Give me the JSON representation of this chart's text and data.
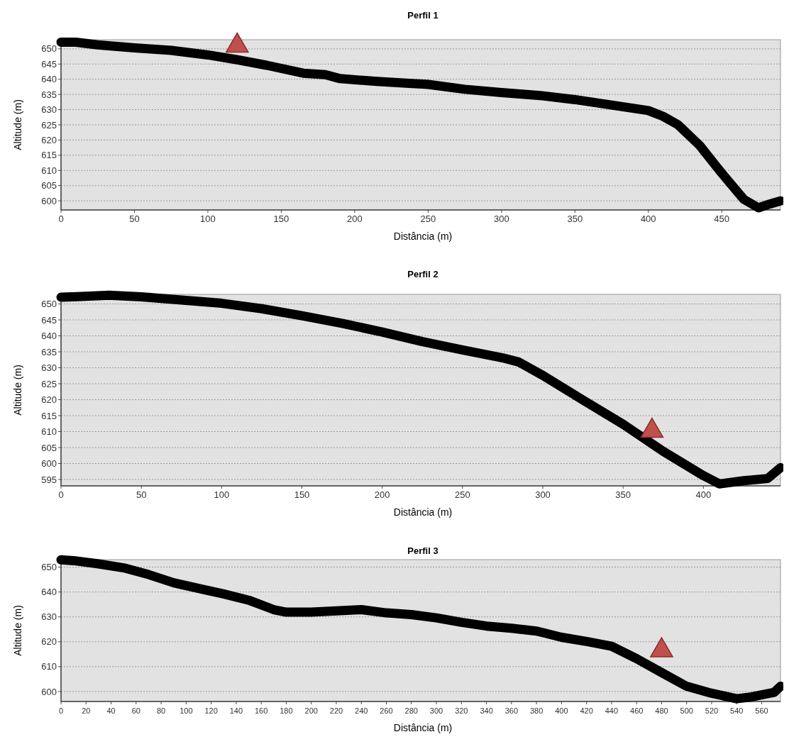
{
  "chart_data": [
    {
      "type": "line",
      "title": "Perfil 1",
      "xlabel": "Distância (m)",
      "ylabel": "Altitude (m)",
      "xlim": [
        0,
        490
      ],
      "xticks": [
        0,
        50,
        100,
        150,
        200,
        250,
        300,
        350,
        400,
        450
      ],
      "ylim": [
        597,
        653
      ],
      "yticks": [
        600,
        605,
        610,
        615,
        620,
        625,
        630,
        635,
        640,
        645,
        650
      ],
      "grid": "y",
      "series": [
        {
          "color": "#000000",
          "x": [
            0,
            10,
            25,
            50,
            75,
            100,
            120,
            140,
            165,
            180,
            190,
            215,
            235,
            250,
            275,
            300,
            325,
            350,
            375,
            400,
            410,
            420,
            435,
            450,
            465,
            475,
            483,
            490
          ],
          "values": [
            652.2,
            652.2,
            651.3,
            650.3,
            649.5,
            648,
            646.4,
            644.6,
            642,
            641.5,
            640.2,
            639.3,
            638.7,
            638.3,
            636.7,
            635.6,
            634.7,
            633.3,
            631.5,
            629.7,
            627.8,
            625.1,
            618.2,
            609.1,
            600.5,
            597.7,
            599,
            600
          ]
        },
        {
          "type": "scatter",
          "color": "#c0504d",
          "marker": "triangle",
          "x": [
            120
          ],
          "values": [
            651
          ]
        }
      ]
    },
    {
      "type": "line",
      "title": "Perfil 2",
      "xlabel": "Distância (m)",
      "ylabel": "Altitude (m)",
      "xlim": [
        0,
        448
      ],
      "xticks": [
        0,
        50,
        100,
        150,
        200,
        250,
        300,
        350,
        400
      ],
      "ylim": [
        593,
        653
      ],
      "yticks": [
        595,
        600,
        605,
        610,
        615,
        620,
        625,
        630,
        635,
        640,
        645,
        650
      ],
      "grid": "y",
      "series": [
        {
          "color": "#000000",
          "x": [
            0,
            10,
            30,
            50,
            75,
            100,
            125,
            150,
            175,
            200,
            225,
            250,
            275,
            285,
            300,
            325,
            350,
            375,
            400,
            410,
            425,
            440,
            448
          ],
          "values": [
            652.1,
            652.3,
            652.7,
            652.2,
            651.2,
            650.2,
            648.5,
            646.3,
            643.9,
            641.2,
            638.2,
            635.6,
            633.1,
            631.8,
            627.6,
            619.9,
            612.3,
            603.8,
            596.2,
            593.6,
            594.6,
            595.3,
            598.7
          ]
        },
        {
          "type": "scatter",
          "color": "#c0504d",
          "marker": "triangle",
          "x": [
            368
          ],
          "values": [
            610.2
          ]
        }
      ]
    },
    {
      "type": "line",
      "title": "Perfil 3",
      "xlabel": "Distância (m)",
      "ylabel": "Altitude (m)",
      "xlim": [
        0,
        575
      ],
      "xticks": [
        0,
        20,
        40,
        60,
        80,
        100,
        120,
        140,
        160,
        180,
        200,
        220,
        240,
        260,
        280,
        300,
        320,
        340,
        360,
        380,
        400,
        420,
        440,
        460,
        480,
        500,
        520,
        540,
        560
      ],
      "ylim": [
        596,
        653
      ],
      "yticks": [
        600,
        610,
        620,
        630,
        640,
        650
      ],
      "grid": "y",
      "series": [
        {
          "color": "#000000",
          "x": [
            0,
            10,
            30,
            50,
            70,
            90,
            110,
            130,
            150,
            170,
            180,
            200,
            220,
            240,
            260,
            280,
            300,
            320,
            340,
            360,
            380,
            400,
            420,
            440,
            460,
            480,
            500,
            520,
            540,
            550,
            570,
            575
          ],
          "values": [
            652.9,
            652.6,
            651.3,
            649.7,
            647,
            643.7,
            641.4,
            639.2,
            636.7,
            632.9,
            631.9,
            631.9,
            632.4,
            632.9,
            631.6,
            630.9,
            629.6,
            627.8,
            626.3,
            625.4,
            624.3,
            621.8,
            620.1,
            618.2,
            613.2,
            607.6,
            602.1,
            599.3,
            597.1,
            597.7,
            599.7,
            602.1
          ]
        },
        {
          "type": "scatter",
          "color": "#c0504d",
          "marker": "triangle",
          "x": [
            480
          ],
          "values": [
            616.5
          ]
        }
      ]
    }
  ]
}
